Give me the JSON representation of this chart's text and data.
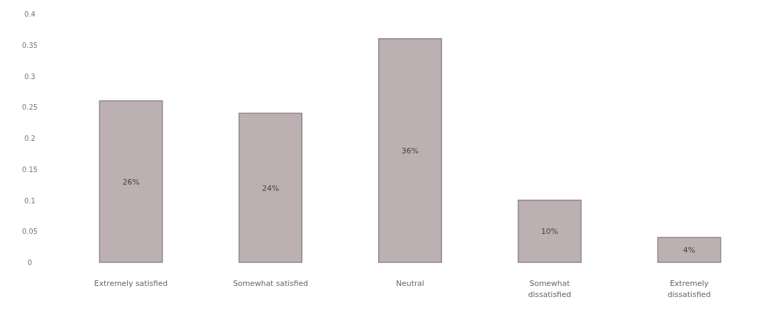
{
  "chart_data": {
    "type": "bar",
    "categories": [
      "Extremely satisfied",
      "Somewhat satisfied",
      "Neutral",
      "Somewhat dissatisfied",
      "Extremely dissatisfied"
    ],
    "values": [
      0.26,
      0.24,
      0.36,
      0.1,
      0.04
    ],
    "value_labels": [
      "26%",
      "24%",
      "36%",
      "10%",
      "4%"
    ],
    "color": "#bcb0b2",
    "ylim": [
      0,
      0.4
    ],
    "yticks": [
      0,
      0.05,
      0.1,
      0.15,
      0.2,
      0.25,
      0.3,
      0.35,
      0.4
    ],
    "grid": false
  }
}
